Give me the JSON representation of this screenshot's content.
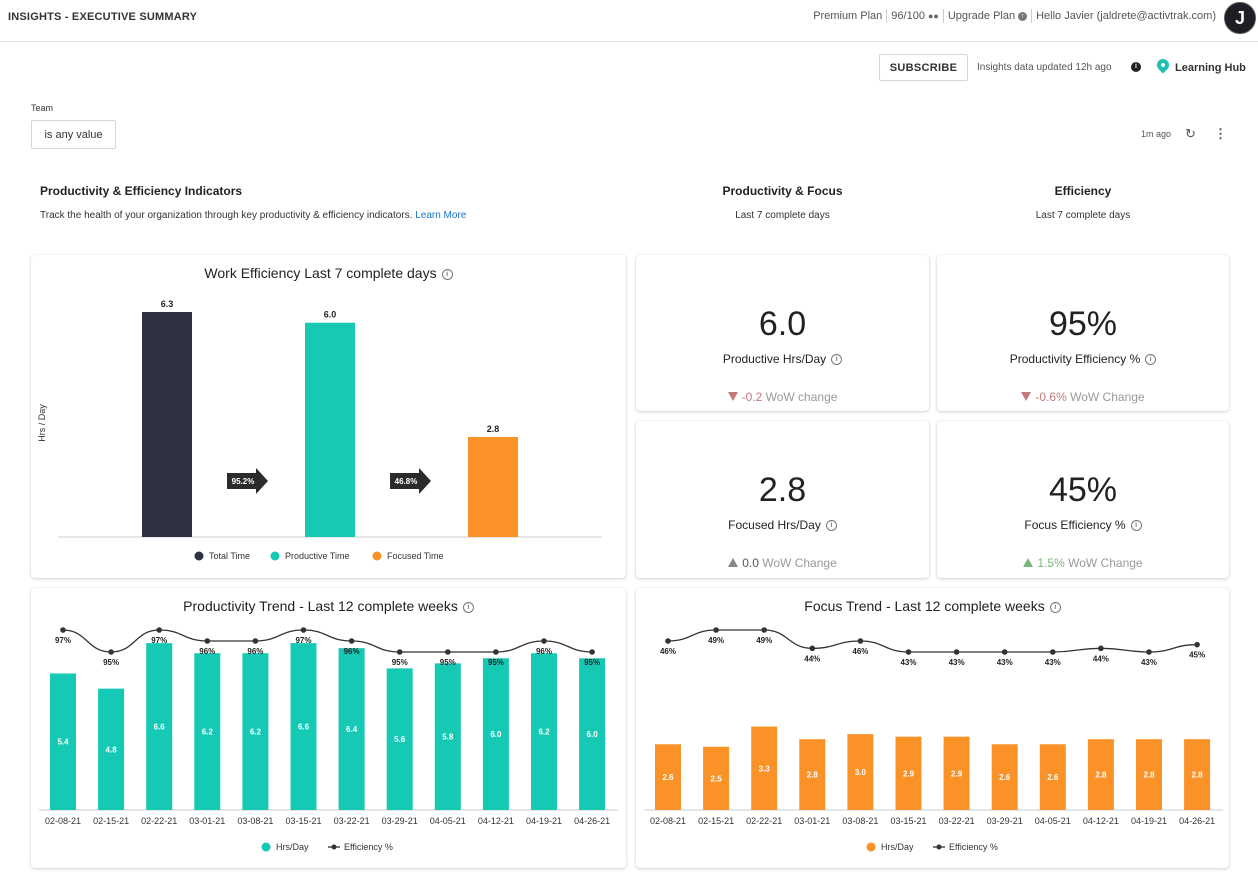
{
  "header": {
    "title": "INSIGHTS - EXECUTIVE SUMMARY",
    "plan": "Premium Plan",
    "seats": "96/100",
    "upgrade": "Upgrade Plan",
    "greeting": "Hello Javier (jaldrete@activtrak.com)",
    "avatar_initial": "J"
  },
  "toolbar": {
    "subscribe": "SUBSCRIBE",
    "updated": "Insights data updated 12h ago",
    "learning_hub": "Learning Hub"
  },
  "filters": {
    "team_label": "Team",
    "team_value": "is any value",
    "refresh_ago": "1m ago"
  },
  "sections": {
    "indicators_title": "Productivity & Efficiency Indicators",
    "indicators_desc": "Track the health of your organization through key productivity & efficiency indicators.",
    "learn_more": "Learn More",
    "focus_title": "Productivity & Focus",
    "focus_sub": "Last 7 complete days",
    "efficiency_title": "Efficiency",
    "efficiency_sub": "Last 7 complete days"
  },
  "kpis": [
    {
      "value": "6.0",
      "label": "Productive Hrs/Day",
      "change": "-0.2",
      "change_suffix": "WoW change",
      "direction": "down"
    },
    {
      "value": "95%",
      "label": "Productivity Efficiency %",
      "change": "-0.6%",
      "change_suffix": "WoW Change",
      "direction": "down"
    },
    {
      "value": "2.8",
      "label": "Focused Hrs/Day",
      "change": "0.0",
      "change_suffix": "WoW Change",
      "direction": "flat"
    },
    {
      "value": "45%",
      "label": "Focus Efficiency %",
      "change": "1.5%",
      "change_suffix": "WoW Change",
      "direction": "up"
    }
  ],
  "chart_data": [
    {
      "type": "bar",
      "title": "Work Efficiency Last 7 complete days",
      "ylabel": "Hrs / Day",
      "categories": [
        "Total Time",
        "Productive Time",
        "Focused Time"
      ],
      "values": [
        6.3,
        6.0,
        2.8
      ],
      "value_labels": [
        "6.3",
        "6.0",
        "2.8"
      ],
      "colors": [
        "#2e3142",
        "#15c9b4",
        "#fb9227"
      ],
      "arrows": [
        "95.2%",
        "46.8%"
      ],
      "legend": [
        "Total Time",
        "Productive Time",
        "Focused Time"
      ],
      "ylim": [
        0,
        6.3
      ]
    },
    {
      "type": "bar",
      "title": "Productivity Trend - Last 12 complete weeks",
      "categories": [
        "02-08-21",
        "02-15-21",
        "02-22-21",
        "03-01-21",
        "03-08-21",
        "03-15-21",
        "03-22-21",
        "03-29-21",
        "04-05-21",
        "04-12-21",
        "04-19-21",
        "04-26-21"
      ],
      "series": [
        {
          "name": "Hrs/Day",
          "values": [
            5.4,
            4.8,
            6.6,
            6.2,
            6.2,
            6.6,
            6.4,
            5.6,
            5.8,
            6.0,
            6.2,
            6.0
          ],
          "labels": [
            "5.4",
            "4.8",
            "6.6",
            "6.2",
            "6.2",
            "6.6",
            "6.4",
            "5.6",
            "5.8",
            "6.0",
            "6.2",
            "6.0"
          ],
          "color": "#15c9b4"
        },
        {
          "name": "Efficiency %",
          "values": [
            97,
            95,
            97,
            96,
            96,
            97,
            96,
            95,
            95,
            95,
            96,
            95
          ],
          "labels": [
            "97%",
            "95%",
            "97%",
            "96%",
            "96%",
            "97%",
            "96%",
            "95%",
            "95%",
            "95%",
            "96%",
            "95%"
          ],
          "color": "#333333"
        }
      ],
      "legend": [
        "Hrs/Day",
        "Efficiency %"
      ]
    },
    {
      "type": "bar",
      "title": "Focus Trend - Last 12 complete weeks",
      "categories": [
        "02-08-21",
        "02-15-21",
        "02-22-21",
        "03-01-21",
        "03-08-21",
        "03-15-21",
        "03-22-21",
        "03-29-21",
        "04-05-21",
        "04-12-21",
        "04-19-21",
        "04-26-21"
      ],
      "series": [
        {
          "name": "Hrs/Day",
          "values": [
            2.6,
            2.5,
            3.3,
            2.8,
            3.0,
            2.9,
            2.9,
            2.6,
            2.6,
            2.8,
            2.8,
            2.8
          ],
          "labels": [
            "2.6",
            "2.5",
            "3.3",
            "2.8",
            "3.0",
            "2.9",
            "2.9",
            "2.6",
            "2.6",
            "2.8",
            "2.8",
            "2.8"
          ],
          "color": "#fb9227"
        },
        {
          "name": "Efficiency %",
          "values": [
            46,
            49,
            49,
            44,
            46,
            43,
            43,
            43,
            43,
            44,
            43,
            45
          ],
          "labels": [
            "46%",
            "49%",
            "49%",
            "44%",
            "46%",
            "43%",
            "43%",
            "43%",
            "43%",
            "44%",
            "43%",
            "45%"
          ],
          "color": "#333333"
        }
      ],
      "legend": [
        "Hrs/Day",
        "Efficiency %"
      ]
    }
  ]
}
